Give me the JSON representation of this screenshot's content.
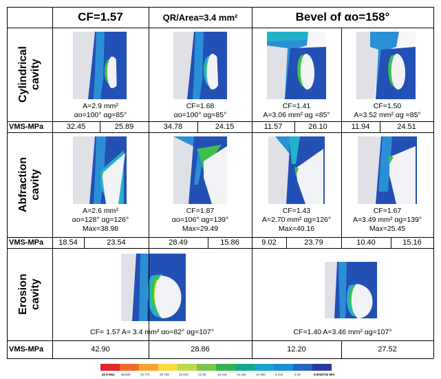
{
  "headers": {
    "cf": "CF=1.57",
    "qr": "QR/Area=3.4 mm²",
    "bevel": "Bevel of αo=158°"
  },
  "rows": {
    "cylindrical": "Cylindrical\ncavity",
    "abfraction": "Abfraction\ncavity",
    "erosion": "Erosion\ncavity",
    "vms_label": "VMS-MPa"
  },
  "captions": {
    "cyl_1_l1": "A=2.9 mm²",
    "cyl_1_l2": "αo=100° αg=85°",
    "cyl_2_l1": "CF=1.68",
    "cyl_2_l2": "αo=100° αg=85°",
    "cyl_3_l1": "CF=1.41",
    "cyl_3_l2": "A=3.06 mm² αg =85°",
    "cyl_4_l1": "CF=1.50",
    "cyl_4_l2": "A=3.52 mm² αg =85°",
    "abf_1_l1": "A=2.6 mm²",
    "abf_1_l2": "αo=128° αg=126°",
    "abf_1_l3": "Max=38.98",
    "abf_2_l1": "CF=1.87",
    "abf_2_l2": "αo=106° αg=139°",
    "abf_2_l3": "Max=29.49",
    "abf_3_l1": "CF=1.43",
    "abf_3_l2": "A=2.70 mm² αg=126°",
    "abf_3_l3": "Max=40.16",
    "abf_4_l1": "CF=1.67",
    "abf_4_l2": "A=3.49 mm² αg=139°",
    "abf_4_l3": "Max=25.45",
    "ero_1": "CF= 1.57 A= 3.4 mm²  αo=82° αg=107°",
    "ero_2": "CF=1.40 A=3.46 mm²  αg=107°"
  },
  "vms": {
    "cyl": [
      "32.45",
      "25.89",
      "34.78",
      "24.15",
      "11.57",
      "26.10",
      "11.94",
      "24.51"
    ],
    "abf": [
      "18.54",
      "23.54",
      "28.49",
      "15.86",
      "9.02",
      "23.79",
      "10.40",
      "15.16"
    ],
    "ero": [
      "42.90",
      "28.86",
      "12.20",
      "27.52"
    ]
  },
  "colorbar": {
    "colors": [
      "#e3262a",
      "#ef6a2c",
      "#f6a531",
      "#f7dd3e",
      "#bfd94a",
      "#7fc24c",
      "#35b24c",
      "#14a88a",
      "#16a7c8",
      "#1e8fd3",
      "#2466c2",
      "#2a3a9c"
    ],
    "labels": [
      "42.9 Max",
      "38.836",
      "34.772",
      "30.708",
      "26.644",
      "22.58",
      "18.516",
      "14.452",
      "10.388",
      "6.324",
      "2.26",
      "0.0033732 Min"
    ]
  },
  "palette": {
    "enamel": "#dfe1e7",
    "dark_blue": "#2350b5",
    "mid_blue": "#2b8fd6",
    "cyan": "#22b3c9",
    "green": "#3ec04b",
    "yellow": "#e2dd3c",
    "restoration": "#f2f3f6"
  }
}
